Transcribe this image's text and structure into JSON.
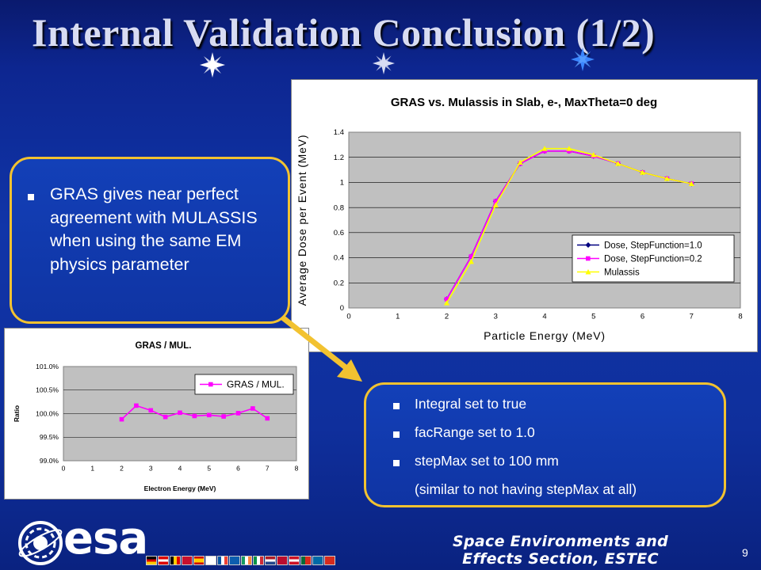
{
  "slide": {
    "title": "Internal Validation Conclusion (1/2)",
    "page_number": "9",
    "footer_line1": "Space Environments and",
    "footer_line2": "Effects Section, ESTEC",
    "logo_text": "esa"
  },
  "left_callout": {
    "text": "GRAS gives near perfect agreement with MULASSIS when using the same EM physics parameter"
  },
  "right_callout": {
    "items": [
      "Integral set to true",
      "facRange set to 1.0",
      "stepMax set to 100 mm"
    ],
    "note": "(similar to not having stepMax at all)"
  },
  "colors": {
    "background": "#0f2f9c",
    "callout_border": "#f2c230",
    "arrow": "#f2c230",
    "series_dose_1": "#000080",
    "series_dose_02": "#ff00ff",
    "series_mulassis": "#ffff00",
    "plot_area": "#c0c0c0"
  },
  "chart_data": [
    {
      "type": "line",
      "title": "GRAS vs. Mulassis in Slab, e-, MaxTheta=0 deg",
      "xlabel": "Particle Energy (MeV)",
      "ylabel": "Average Dose per Event (MeV)",
      "xlim": [
        0,
        8
      ],
      "ylim": [
        0,
        1.4
      ],
      "x_ticks": [
        "0",
        "1",
        "2",
        "3",
        "4",
        "5",
        "6",
        "7",
        "8"
      ],
      "y_ticks": [
        "0",
        "0.2",
        "0.4",
        "0.6",
        "0.8",
        "1",
        "1.2",
        "1.4"
      ],
      "grid": true,
      "legend": "bottom-right",
      "series": [
        {
          "name": "Dose, StepFunction=1.0",
          "x": [
            2,
            2.5,
            3,
            3.5,
            4,
            4.5,
            5,
            5.5,
            6,
            6.5,
            7
          ],
          "values": [
            0.07,
            0.41,
            0.85,
            1.15,
            1.25,
            1.25,
            1.21,
            1.15,
            1.08,
            1.03,
            0.99
          ]
        },
        {
          "name": "Dose, StepFunction=0.2",
          "x": [
            2,
            2.5,
            3,
            3.5,
            4,
            4.5,
            5,
            5.5,
            6,
            6.5,
            7
          ],
          "values": [
            0.07,
            0.41,
            0.85,
            1.15,
            1.25,
            1.25,
            1.21,
            1.15,
            1.08,
            1.03,
            0.99
          ]
        },
        {
          "name": "Mulassis",
          "x": [
            2,
            2.5,
            3,
            3.5,
            4,
            4.5,
            5,
            5.5,
            6,
            6.5,
            7
          ],
          "values": [
            0.04,
            0.37,
            0.82,
            1.16,
            1.27,
            1.27,
            1.22,
            1.15,
            1.08,
            1.03,
            0.99
          ]
        }
      ]
    },
    {
      "type": "line",
      "title": "GRAS / MUL.",
      "xlabel": "Electron Energy (MeV)",
      "ylabel": "Ratio",
      "xlim": [
        0,
        8
      ],
      "ylim": [
        99.0,
        101.0
      ],
      "x_ticks": [
        "0",
        "1",
        "2",
        "3",
        "4",
        "5",
        "6",
        "7",
        "8"
      ],
      "y_ticks": [
        "99.0%",
        "99.5%",
        "100.0%",
        "100.5%",
        "101.0%"
      ],
      "grid": true,
      "legend": "top-right",
      "series": [
        {
          "name": "GRAS / MUL.",
          "x": [
            2,
            2.5,
            3,
            3.5,
            4,
            4.5,
            5,
            5.5,
            6,
            6.5,
            7
          ],
          "values": [
            99.88,
            100.17,
            100.07,
            99.93,
            100.02,
            99.95,
            99.97,
            99.94,
            100.01,
            100.11,
            99.9
          ]
        }
      ]
    }
  ]
}
